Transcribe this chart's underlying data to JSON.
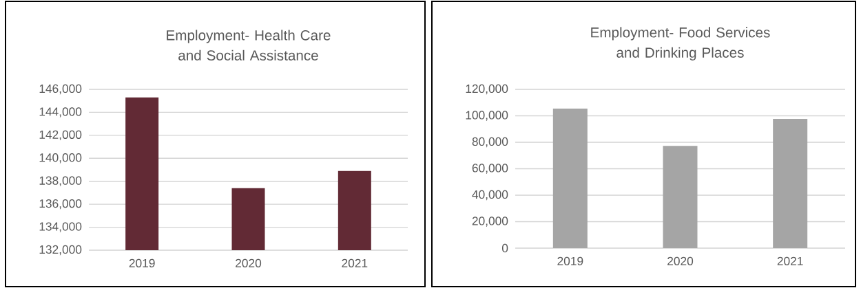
{
  "chart_data": [
    {
      "type": "bar",
      "title": "Employment- Health Care and Social Assistance",
      "categories": [
        "2019",
        "2020",
        "2021"
      ],
      "values": [
        145300,
        137400,
        138900
      ],
      "color": "#622a35",
      "ylim": [
        132000,
        146000
      ],
      "yticks": [
        {
          "value": 132000,
          "label": "132,000"
        },
        {
          "value": 134000,
          "label": "134,000"
        },
        {
          "value": 136000,
          "label": "136,000"
        },
        {
          "value": 138000,
          "label": "138,000"
        },
        {
          "value": 140000,
          "label": "140,000"
        },
        {
          "value": 142000,
          "label": "142,000"
        },
        {
          "value": 144000,
          "label": "144,000"
        },
        {
          "value": 146000,
          "label": "146,000"
        }
      ],
      "grid": "y"
    },
    {
      "type": "bar",
      "title": "Employment- Food Services and Drinking Places",
      "categories": [
        "2019",
        "2020",
        "2021"
      ],
      "values": [
        105400,
        77300,
        97700
      ],
      "color": "#a5a5a5",
      "ylim": [
        0,
        120000
      ],
      "yticks": [
        0,
        {
          "value": 20000,
          "label": "20,000"
        },
        {
          "value": 40000,
          "label": "40,000"
        },
        {
          "value": 60000,
          "label": "60,000"
        },
        {
          "value": 80000,
          "label": "80,000"
        },
        {
          "value": 100000,
          "label": "100,000"
        },
        {
          "value": 120000,
          "label": "120,000"
        }
      ],
      "grid": "y"
    }
  ]
}
